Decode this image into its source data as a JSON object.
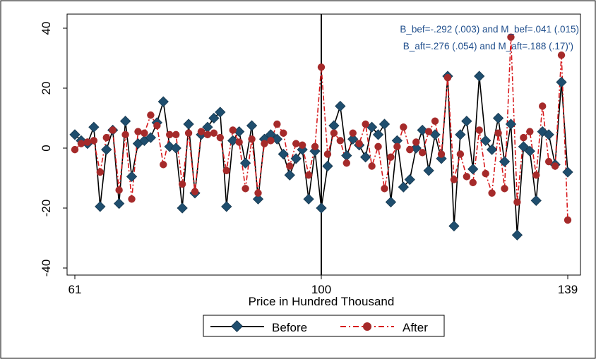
{
  "chart_data": {
    "type": "line",
    "title": "",
    "xlabel": "Price in Hundred Thousand",
    "ylabel": "",
    "xlim": [
      60,
      140
    ],
    "ylim": [
      -40,
      40
    ],
    "x_ticks": [
      61,
      100,
      139
    ],
    "y_ticks": [
      -40,
      -20,
      0,
      20,
      40
    ],
    "grid": false,
    "vline_x": 100,
    "annotations": [
      "B_bef=-.292 (.003) and M_bef=.041 (.015)",
      "B_aft=.276 (.054) and M_aft=.188 (.17)')"
    ],
    "legend": {
      "placement": "bottom",
      "entries": [
        "Before",
        "After"
      ]
    },
    "x_start": 61,
    "series": [
      {
        "name": "Before",
        "color": "#1f4e6e",
        "values": [
          4.5,
          2.5,
          1.5,
          7,
          -19.5,
          -0.5,
          6,
          -18.5,
          9,
          -9.5,
          1.5,
          2.5,
          3.5,
          8.5,
          15.5,
          0.5,
          0,
          -20,
          8,
          -15,
          4.5,
          7,
          10,
          12,
          -19.5,
          2.5,
          5.5,
          -5,
          7.5,
          -17,
          3,
          4.5,
          3,
          -2,
          -9,
          -3.5,
          -0.5,
          -17,
          -1,
          -20,
          -6,
          7.5,
          14,
          -2.5,
          3,
          1,
          -3,
          7,
          4.5,
          8,
          -18,
          2.5,
          -13,
          -10.5,
          0,
          6,
          -7.5,
          4.5,
          -3.5,
          24,
          -26,
          4.5,
          9,
          -7,
          24,
          2.5,
          -0.5,
          10,
          -4.5,
          8,
          -29,
          0.5,
          -1,
          -17.5,
          5.5,
          4.5,
          -5.5,
          22,
          -8
        ]
      },
      {
        "name": "After",
        "color": "#d7191c",
        "marker_color": "#a52a2a",
        "values": [
          -0.5,
          1.5,
          2,
          2.5,
          -8,
          3.5,
          6,
          -14,
          4.5,
          -17,
          5.5,
          5,
          11,
          7.5,
          -5.5,
          4.5,
          4.5,
          -12,
          5,
          -14.5,
          5.5,
          4.5,
          5,
          3.5,
          -7.5,
          6,
          2,
          -13.5,
          3,
          -15,
          1.5,
          2.5,
          8,
          5,
          -6,
          1.5,
          1,
          -9,
          0.5,
          27,
          -2,
          5,
          2.5,
          -5,
          5,
          1.5,
          8,
          -6,
          0.5,
          -13.5,
          -3,
          0.5,
          7,
          -0.5,
          2,
          -1.5,
          5.5,
          9,
          -2,
          23.5,
          -10.5,
          -2,
          -9.5,
          -11.5,
          6,
          -8.5,
          -15,
          5,
          -13.5,
          37,
          -18,
          3.5,
          5.5,
          -9,
          14,
          -4.5,
          -6,
          31,
          -24
        ]
      }
    ]
  }
}
